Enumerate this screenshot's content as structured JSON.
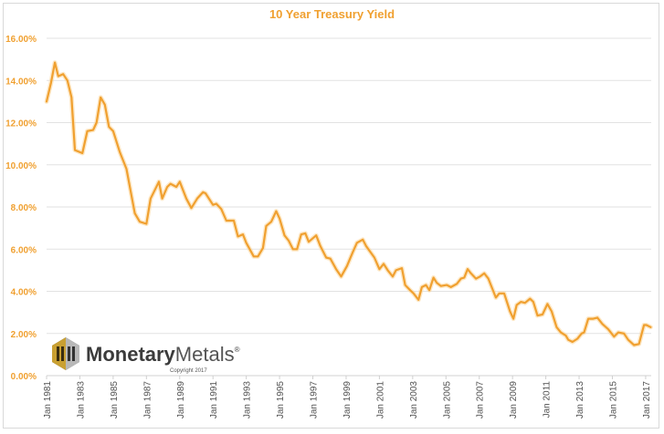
{
  "chart_data": {
    "type": "line",
    "title": "10 Year Treasury Yield",
    "xlabel": "",
    "ylabel": "",
    "ylim": [
      0,
      16
    ],
    "xlim": [
      1981,
      2017.3
    ],
    "grid": "horizontal",
    "legend": "none",
    "line_color": "#f0a030",
    "yticks": [
      "0.00%",
      "2.00%",
      "4.00%",
      "6.00%",
      "8.00%",
      "10.00%",
      "12.00%",
      "14.00%",
      "16.00%"
    ],
    "ytick_values": [
      0,
      2,
      4,
      6,
      8,
      10,
      12,
      14,
      16
    ],
    "xticks": [
      "Jan 1981",
      "Jan 1983",
      "Jan 1985",
      "Jan 1987",
      "Jan 1989",
      "Jan 1991",
      "Jan 1993",
      "Jan 1995",
      "Jan 1997",
      "Jan 1999",
      "Jan 2001",
      "Jan 2003",
      "Jan 2005",
      "Jan 2007",
      "Jan 2009",
      "Jan 2011",
      "Jan 2013",
      "Jan 2015",
      "Jan 2017"
    ],
    "xtick_values": [
      1981,
      1983,
      1985,
      1987,
      1989,
      1991,
      1993,
      1995,
      1997,
      1999,
      2001,
      2003,
      2005,
      2007,
      2009,
      2011,
      2013,
      2015,
      2017
    ],
    "series": [
      {
        "name": "10 Year Treasury Yield (%)",
        "x": [
          1981.0,
          1981.27,
          1981.5,
          1981.7,
          1982.0,
          1982.25,
          1982.5,
          1982.7,
          1983.15,
          1983.45,
          1983.8,
          1984.0,
          1984.25,
          1984.5,
          1984.75,
          1985.0,
          1985.4,
          1985.8,
          1986.3,
          1986.6,
          1987.0,
          1987.25,
          1987.75,
          1987.95,
          1988.25,
          1988.45,
          1988.8,
          1989.0,
          1989.4,
          1989.7,
          1990.05,
          1990.4,
          1990.55,
          1991.0,
          1991.2,
          1991.5,
          1991.8,
          1992.25,
          1992.5,
          1992.8,
          1993.0,
          1993.45,
          1993.7,
          1994.0,
          1994.2,
          1994.5,
          1994.8,
          1995.0,
          1995.3,
          1995.55,
          1995.8,
          1996.05,
          1996.3,
          1996.55,
          1996.75,
          1997.2,
          1997.45,
          1997.8,
          1998.05,
          1998.4,
          1998.7,
          1999.05,
          1999.4,
          1999.65,
          2000.0,
          2000.2,
          2000.7,
          2001.0,
          2001.25,
          2001.5,
          2001.8,
          2002.0,
          2002.35,
          2002.55,
          2002.85,
          2003.05,
          2003.35,
          2003.55,
          2003.8,
          2004.0,
          2004.25,
          2004.45,
          2004.7,
          2005.05,
          2005.3,
          2005.65,
          2005.9,
          2006.1,
          2006.3,
          2006.5,
          2006.8,
          2007.05,
          2007.3,
          2007.55,
          2008.0,
          2008.2,
          2008.5,
          2008.85,
          2009.05,
          2009.25,
          2009.5,
          2009.75,
          2010.05,
          2010.25,
          2010.5,
          2010.8,
          2011.1,
          2011.35,
          2011.65,
          2011.9,
          2012.2,
          2012.35,
          2012.6,
          2012.9,
          2013.15,
          2013.3,
          2013.55,
          2013.85,
          2014.1,
          2014.4,
          2014.75,
          2015.1,
          2015.35,
          2015.7,
          2015.95,
          2016.3,
          2016.6,
          2016.9,
          2017.05,
          2017.3
        ],
        "values": [
          13.0,
          13.9,
          14.85,
          14.2,
          14.3,
          14.0,
          13.2,
          10.7,
          10.55,
          11.6,
          11.65,
          12.0,
          13.2,
          12.85,
          11.8,
          11.6,
          10.6,
          9.8,
          7.7,
          7.3,
          7.2,
          8.4,
          9.2,
          8.4,
          8.95,
          9.1,
          8.95,
          9.2,
          8.4,
          7.95,
          8.4,
          8.7,
          8.65,
          8.1,
          8.15,
          7.9,
          7.35,
          7.35,
          6.6,
          6.7,
          6.3,
          5.65,
          5.65,
          6.05,
          7.1,
          7.3,
          7.8,
          7.45,
          6.65,
          6.4,
          6.0,
          6.0,
          6.7,
          6.75,
          6.35,
          6.65,
          6.15,
          5.6,
          5.55,
          5.05,
          4.7,
          5.2,
          5.85,
          6.3,
          6.45,
          6.15,
          5.6,
          5.05,
          5.3,
          5.0,
          4.7,
          5.0,
          5.1,
          4.3,
          4.05,
          3.9,
          3.6,
          4.2,
          4.3,
          4.05,
          4.65,
          4.4,
          4.25,
          4.3,
          4.2,
          4.35,
          4.6,
          4.65,
          5.05,
          4.85,
          4.6,
          4.7,
          4.85,
          4.6,
          3.7,
          3.9,
          3.9,
          3.05,
          2.7,
          3.35,
          3.5,
          3.45,
          3.65,
          3.5,
          2.85,
          2.9,
          3.4,
          3.05,
          2.3,
          2.05,
          1.9,
          1.7,
          1.6,
          1.75,
          2.0,
          2.05,
          2.7,
          2.7,
          2.75,
          2.45,
          2.2,
          1.85,
          2.05,
          2.0,
          1.7,
          1.45,
          1.5,
          2.4,
          2.4,
          2.3
        ]
      }
    ]
  },
  "logo": {
    "brand_bold": "Monetary",
    "brand_light": "Metals",
    "registered": "®",
    "copyright": "Copyright 2017"
  }
}
